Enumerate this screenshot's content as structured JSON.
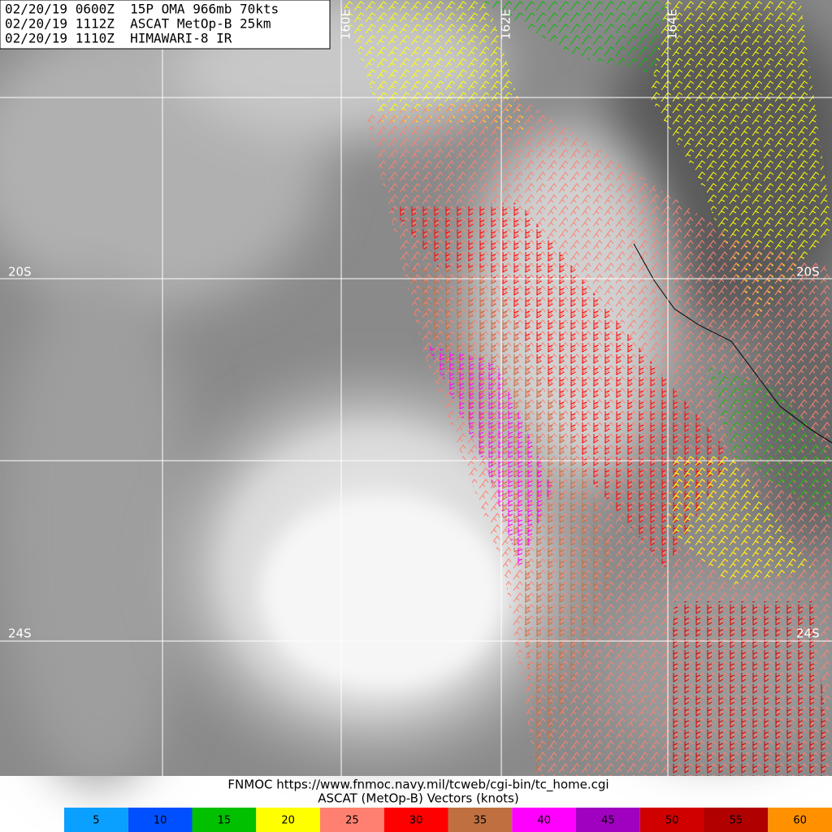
{
  "header": {
    "lines": [
      "02/20/19 0600Z  15P OMA 966mb 70kts",
      "02/20/19 1112Z  ASCAT MetOp-B 25km",
      "02/20/19 1110Z  HIMAWARI-8 IR"
    ]
  },
  "map": {
    "lon_labels": [
      "160E",
      "162E",
      "164E"
    ],
    "lat_labels": [
      "20S",
      "24S"
    ]
  },
  "footer": {
    "source": "FNMOC https://www.fnmoc.navy.mil/tcweb/cgi-bin/tc_home.cgi",
    "caption": "ASCAT (MetOp-B) Vectors (knots)"
  },
  "legend": {
    "values": [
      5,
      10,
      15,
      20,
      25,
      30,
      35,
      40,
      45,
      50,
      55,
      60
    ],
    "colors": [
      "#0aa0ff",
      "#0050ff",
      "#00c000",
      "#ffff00",
      "#ff8070",
      "#ff0000",
      "#c07040",
      "#ff00ff",
      "#a000c0",
      "#d00000",
      "#b00000",
      "#ff9000"
    ]
  }
}
